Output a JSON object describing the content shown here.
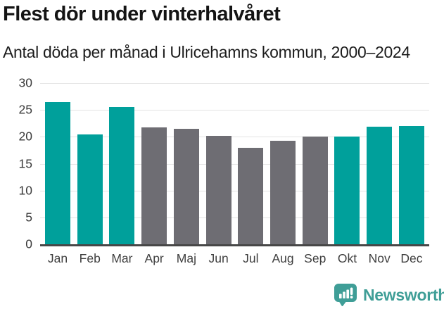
{
  "header": {
    "title": "Flest dör under vinterhalvåret",
    "subtitle": "Antal döda per månad i Ulricehamns kommun, 2000–2024"
  },
  "chart_data": {
    "type": "bar",
    "title": "Flest dör under vinterhalvåret",
    "subtitle": "Antal döda per månad i Ulricehamns kommun, 2000–2024",
    "categories": [
      "Jan",
      "Feb",
      "Mar",
      "Apr",
      "Maj",
      "Jun",
      "Jul",
      "Aug",
      "Sep",
      "Okt",
      "Nov",
      "Dec"
    ],
    "values": [
      26.5,
      20.5,
      25.5,
      21.7,
      21.5,
      20.2,
      17.9,
      19.3,
      20.1,
      20.0,
      21.9,
      22.0
    ],
    "bar_color_keys": [
      "teal",
      "teal",
      "teal",
      "gray",
      "gray",
      "gray",
      "gray",
      "gray",
      "gray",
      "teal",
      "teal",
      "teal"
    ],
    "highlight_meaning": "winter-half-year months highlighted in teal",
    "xlabel": "",
    "ylabel": "",
    "ylim": [
      0,
      30
    ],
    "yticks": [
      0,
      5,
      10,
      15,
      20,
      25,
      30
    ],
    "grid": true,
    "legend": false,
    "colors": {
      "teal": "#00a09b",
      "gray": "#6e6d73",
      "gridline": "#e4e4e4",
      "axis": "#474747",
      "tick_text": "#3a3a3a"
    }
  },
  "footer": {
    "brand": "Newsworthy",
    "brand_color": "#3f9e97",
    "logo_icon": "speech-bubble-with-bar-chart-and-exclamation"
  }
}
